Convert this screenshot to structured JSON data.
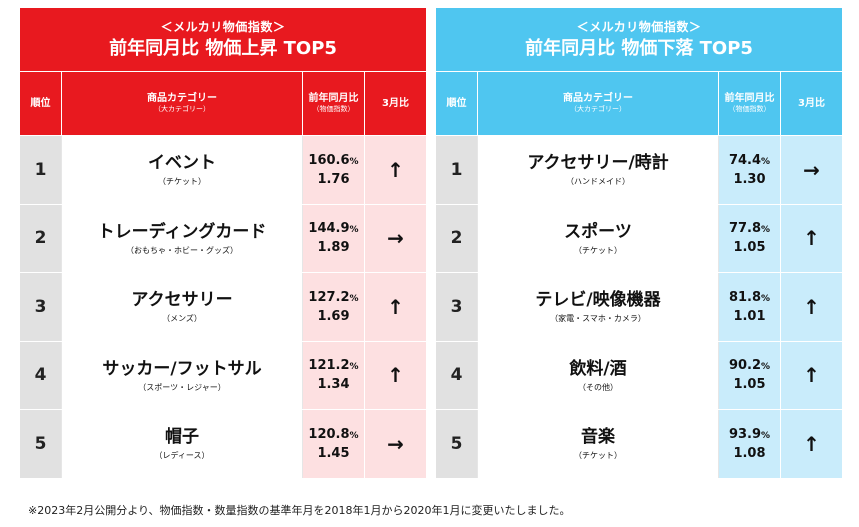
{
  "up": {
    "subtitle": "＜メルカリ物価指数＞",
    "title": "前年同月比 物価上昇 TOP5",
    "headers": {
      "rank": "順位",
      "category": "商品カテゴリー",
      "category_sub": "（大カテゴリー）",
      "index": "前年同月比",
      "index_sub": "（物価指数）",
      "mom": "3月比"
    },
    "rows": [
      {
        "rank": "1",
        "name": "イベント",
        "sub": "（チケット）",
        "pct": "160.6",
        "unit": "%",
        "mult": "1.76",
        "arrow": "↑"
      },
      {
        "rank": "2",
        "name": "トレーディングカード",
        "sub": "（おもちゃ・ホビー・グッズ）",
        "pct": "144.9",
        "unit": "%",
        "mult": "1.89",
        "arrow": "→"
      },
      {
        "rank": "3",
        "name": "アクセサリー",
        "sub": "（メンズ）",
        "pct": "127.2",
        "unit": "%",
        "mult": "1.69",
        "arrow": "↑"
      },
      {
        "rank": "4",
        "name": "サッカー/フットサル",
        "sub": "（スポーツ・レジャー）",
        "pct": "121.2",
        "unit": "%",
        "mult": "1.34",
        "arrow": "↑"
      },
      {
        "rank": "5",
        "name": "帽子",
        "sub": "（レディース）",
        "pct": "120.8",
        "unit": "%",
        "mult": "1.45",
        "arrow": "→"
      }
    ]
  },
  "down": {
    "subtitle": "＜メルカリ物価指数＞",
    "title": "前年同月比 物価下落 TOP5",
    "headers": {
      "rank": "順位",
      "category": "商品カテゴリー",
      "category_sub": "（大カテゴリー）",
      "index": "前年同月比",
      "index_sub": "（物価指数）",
      "mom": "3月比"
    },
    "rows": [
      {
        "rank": "1",
        "name": "アクセサリー/時計",
        "sub": "（ハンドメイド）",
        "pct": "74.4",
        "unit": "%",
        "mult": "1.30",
        "arrow": "→"
      },
      {
        "rank": "2",
        "name": "スポーツ",
        "sub": "（チケット）",
        "pct": "77.8",
        "unit": "%",
        "mult": "1.05",
        "arrow": "↑"
      },
      {
        "rank": "3",
        "name": "テレビ/映像機器",
        "sub": "（家電・スマホ・カメラ）",
        "pct": "81.8",
        "unit": "%",
        "mult": "1.01",
        "arrow": "↑"
      },
      {
        "rank": "4",
        "name": "飲料/酒",
        "sub": "（その他）",
        "pct": "90.2",
        "unit": "%",
        "mult": "1.05",
        "arrow": "↑"
      },
      {
        "rank": "5",
        "name": "音楽",
        "sub": "（チケット）",
        "pct": "93.9",
        "unit": "%",
        "mult": "1.08",
        "arrow": "↑"
      }
    ]
  },
  "footnote": "※2023年2月公開分より、物価指数・数量指数の基準年月を2018年1月から2020年1月に変更いたしました。",
  "colors": {
    "up_accent": "#e8191f",
    "down_accent": "#4fc6f0",
    "up_cell": "#fde0e1",
    "down_cell": "#c9ecfb",
    "rank_cell": "#e1e1e1"
  }
}
